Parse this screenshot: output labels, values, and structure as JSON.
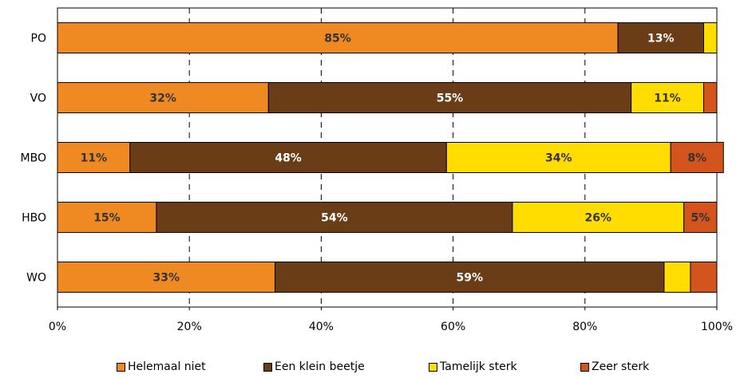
{
  "chart_data": {
    "type": "bar",
    "orientation": "horizontal",
    "stacked": true,
    "categories": [
      "PO",
      "VO",
      "MBO",
      "HBO",
      "WO"
    ],
    "series": [
      {
        "name": "Helemaal niet",
        "color": "#EF8A22",
        "label_color": "#333333",
        "values": [
          85,
          32,
          11,
          15,
          33
        ],
        "labels": [
          "85%",
          "32%",
          "11%",
          "15%",
          "33%"
        ]
      },
      {
        "name": "Een klein beetje",
        "color": "#6B3D17",
        "label_color": "#ffffff",
        "values": [
          13,
          55,
          48,
          54,
          59
        ],
        "labels": [
          "13%",
          "55%",
          "48%",
          "54%",
          "59%"
        ]
      },
      {
        "name": "Tamelijk sterk",
        "color": "#FFDD00",
        "label_color": "#333333",
        "values": [
          2,
          11,
          34,
          26,
          4
        ],
        "labels": [
          "",
          "11%",
          "34%",
          "26%",
          ""
        ]
      },
      {
        "name": "Zeer sterk",
        "color": "#D4541E",
        "label_color": "#333333",
        "values": [
          0,
          2,
          8,
          5,
          4
        ],
        "labels": [
          "",
          "",
          "8%",
          "5%",
          ""
        ]
      }
    ],
    "xlim": [
      0,
      100
    ],
    "xticks": [
      "0%",
      "20%",
      "40%",
      "60%",
      "80%",
      "100%"
    ],
    "grid": "vertical dashed",
    "legend_position": "bottom"
  }
}
